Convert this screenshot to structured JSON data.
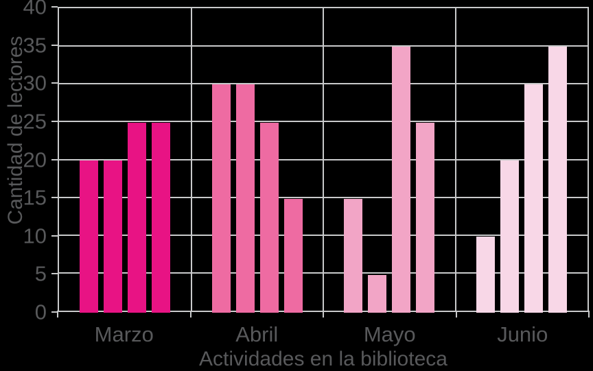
{
  "style": {
    "background": "#000000",
    "grid_color": "#C9CACB",
    "text_color": "#58595B"
  },
  "chart_data": {
    "type": "bar",
    "title": "",
    "xlabel": "Actividades en la biblioteca",
    "ylabel": "Cantidad de lectores",
    "ylim": [
      0,
      40
    ],
    "yticks": [
      0,
      5,
      10,
      15,
      20,
      25,
      30,
      35,
      40
    ],
    "grid": true,
    "legend": false,
    "categories": [
      "Marzo",
      "Abril",
      "Mayo",
      "Junio"
    ],
    "series": [
      {
        "name": "Marzo",
        "color": "#E81384",
        "values": [
          20,
          20,
          25,
          25
        ]
      },
      {
        "name": "Abril",
        "color": "#EE6BA2",
        "values": [
          30,
          30,
          25,
          15
        ]
      },
      {
        "name": "Mayo",
        "color": "#F2A5C6",
        "values": [
          15,
          5,
          35,
          25
        ]
      },
      {
        "name": "Junio",
        "color": "#F8D7E7",
        "values": [
          10,
          20,
          30,
          35
        ]
      }
    ]
  }
}
